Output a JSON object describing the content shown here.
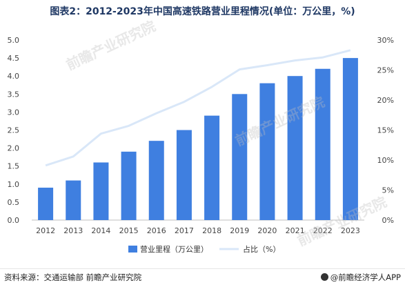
{
  "header": {
    "title": "图表2：2012-2023年中国高速铁路营业里程情况(单位：万公里，%)"
  },
  "watermark": {
    "text": "前瞻产业研究院"
  },
  "footer": {
    "source": "资料来源：交通运输部 前瞻产业研究院",
    "app": "@前瞻经济学人APP"
  },
  "colors": {
    "bar": "#3f7fe0",
    "line": "#d9e7f8",
    "axis_text": "#444444",
    "grid": "#e6e6e6"
  },
  "chart_data": {
    "type": "bar",
    "title": "图表2：2012-2023年中国高速铁路营业里程情况(单位：万公里，%)",
    "categories": [
      "2012",
      "2013",
      "2014",
      "2015",
      "2016",
      "2017",
      "2018",
      "2019",
      "2020",
      "2021",
      "2022",
      "2023"
    ],
    "series": [
      {
        "name": "营业里程（万公里）",
        "type": "bar",
        "axis": "left",
        "values": [
          0.9,
          1.1,
          1.6,
          1.9,
          2.2,
          2.5,
          2.9,
          3.5,
          3.8,
          4.0,
          4.2,
          4.5
        ]
      },
      {
        "name": "占比（%）",
        "type": "line",
        "axis": "right",
        "values": [
          9.1,
          10.6,
          14.4,
          15.7,
          17.8,
          19.7,
          22.2,
          25.1,
          25.8,
          26.6,
          27.1,
          28.3
        ]
      }
    ],
    "ylim_left": [
      0,
      5.0
    ],
    "ytick_labels_left": [
      "0.0",
      "0.5",
      "1.0",
      "1.5",
      "2.0",
      "2.5",
      "3.0",
      "3.5",
      "4.0",
      "4.5",
      "5.0"
    ],
    "ylim_right": [
      0,
      30
    ],
    "ytick_labels_right": [
      "0%",
      "5%",
      "10%",
      "15%",
      "20%",
      "25%",
      "30%"
    ],
    "legend": {
      "position": "bottom"
    },
    "grid": false
  }
}
